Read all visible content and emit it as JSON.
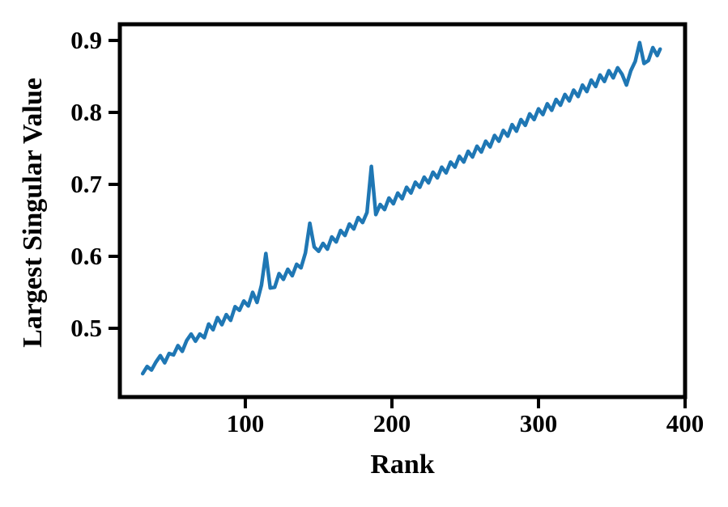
{
  "figure": {
    "background": "#ffffff",
    "axis_color": "#000000"
  },
  "chart_data": {
    "type": "line",
    "title": "",
    "xlabel": "Rank",
    "ylabel": "Largest Singular Value",
    "xlim": [
      14.4,
      400
    ],
    "ylim": [
      0.4045,
      0.9225
    ],
    "grid": false,
    "legend_position": "none",
    "x_ticks": [
      100,
      200,
      300,
      400
    ],
    "x_tick_labels": [
      "100",
      "200",
      "300",
      "400"
    ],
    "y_ticks": [
      0.5,
      0.6,
      0.7,
      0.8,
      0.9
    ],
    "y_tick_labels": [
      "0.5",
      "0.6",
      "0.7",
      "0.8",
      "0.9"
    ],
    "line_color": "#1f77b4",
    "line_width": 4.5,
    "series": [
      {
        "name": "Largest Singular Value",
        "x": [
          30,
          33,
          36,
          39,
          42,
          45,
          48,
          51,
          54,
          57,
          60,
          63,
          66,
          69,
          72,
          75,
          78,
          81,
          84,
          87,
          90,
          93,
          96,
          99,
          102,
          105,
          108,
          111,
          114,
          117,
          120,
          123,
          126,
          129,
          132,
          135,
          138,
          141,
          144,
          147,
          150,
          153,
          156,
          159,
          162,
          165,
          168,
          171,
          174,
          177,
          180,
          183,
          186,
          189,
          192,
          195,
          198,
          201,
          204,
          207,
          210,
          213,
          216,
          219,
          222,
          225,
          228,
          231,
          234,
          237,
          240,
          243,
          246,
          249,
          252,
          255,
          258,
          261,
          264,
          267,
          270,
          273,
          276,
          279,
          282,
          285,
          288,
          291,
          294,
          297,
          300,
          303,
          306,
          309,
          312,
          315,
          318,
          321,
          324,
          327,
          330,
          333,
          336,
          339,
          342,
          345,
          348,
          351,
          354,
          357,
          360,
          363,
          366,
          369,
          372,
          375,
          378,
          381,
          383
        ],
        "values": [
          0.437,
          0.447,
          0.442,
          0.453,
          0.462,
          0.452,
          0.465,
          0.463,
          0.476,
          0.468,
          0.483,
          0.492,
          0.482,
          0.492,
          0.487,
          0.506,
          0.498,
          0.515,
          0.505,
          0.519,
          0.511,
          0.53,
          0.525,
          0.538,
          0.531,
          0.55,
          0.536,
          0.56,
          0.604,
          0.556,
          0.557,
          0.576,
          0.568,
          0.582,
          0.573,
          0.589,
          0.584,
          0.605,
          0.646,
          0.613,
          0.607,
          0.618,
          0.61,
          0.627,
          0.62,
          0.636,
          0.629,
          0.645,
          0.638,
          0.654,
          0.647,
          0.661,
          0.725,
          0.658,
          0.672,
          0.665,
          0.681,
          0.673,
          0.688,
          0.68,
          0.696,
          0.688,
          0.703,
          0.696,
          0.71,
          0.702,
          0.717,
          0.709,
          0.724,
          0.716,
          0.731,
          0.724,
          0.739,
          0.731,
          0.746,
          0.738,
          0.753,
          0.745,
          0.76,
          0.752,
          0.768,
          0.76,
          0.775,
          0.767,
          0.783,
          0.774,
          0.79,
          0.782,
          0.798,
          0.79,
          0.805,
          0.797,
          0.812,
          0.803,
          0.818,
          0.81,
          0.825,
          0.816,
          0.831,
          0.822,
          0.838,
          0.829,
          0.845,
          0.836,
          0.852,
          0.843,
          0.858,
          0.848,
          0.862,
          0.853,
          0.838,
          0.858,
          0.871,
          0.897,
          0.868,
          0.872,
          0.89,
          0.879,
          0.888
        ]
      }
    ]
  }
}
